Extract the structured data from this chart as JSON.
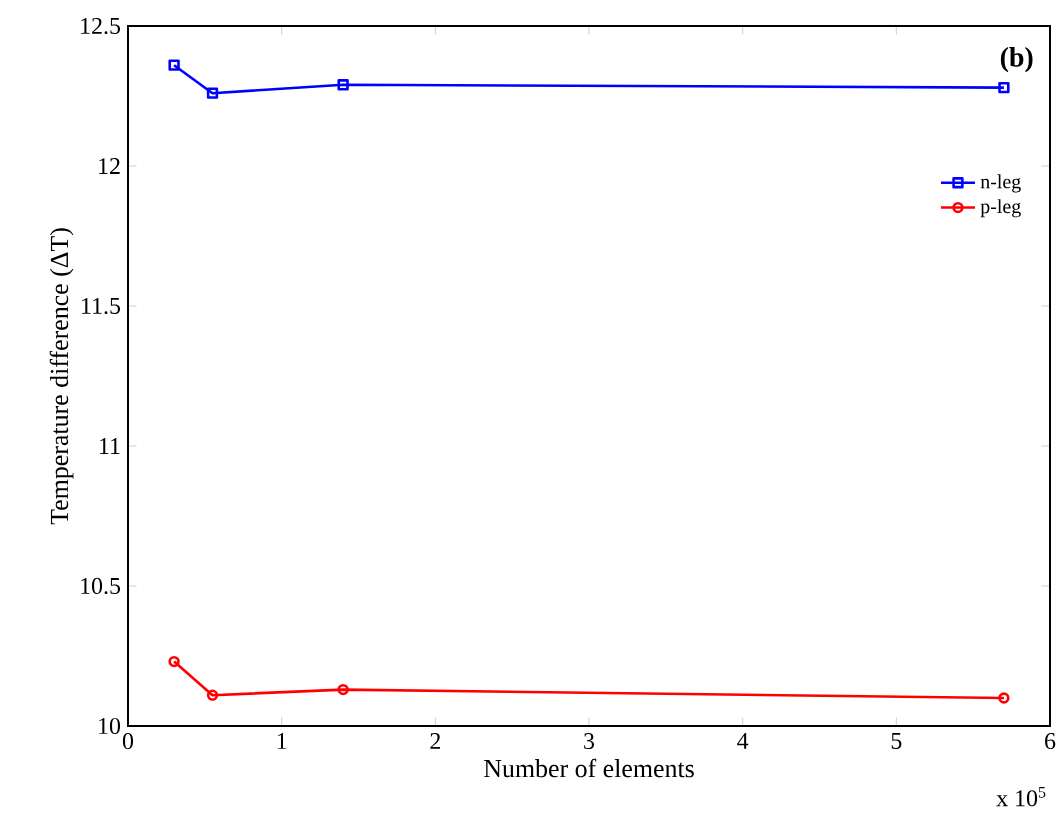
{
  "chart_data": {
    "type": "line",
    "xlabel": "Number of elements",
    "ylabel": "Temperature difference (ΔT)",
    "annotations": [
      "(b)",
      "x 10$^{5}$"
    ],
    "x": [
      0.3,
      0.55,
      1.4,
      5.7
    ],
    "series": [
      {
        "name": "n-leg",
        "color": "#0000ff",
        "marker": "square",
        "values": [
          12.36,
          12.26,
          12.29,
          12.28
        ]
      },
      {
        "name": "p-leg",
        "color": "#ff0000",
        "marker": "circle",
        "values": [
          10.23,
          10.11,
          10.13,
          10.1
        ]
      }
    ],
    "xlim": [
      0,
      6
    ],
    "xticks": [
      0,
      1,
      2,
      3,
      4,
      5,
      6
    ],
    "ylim": [
      10,
      12.5
    ],
    "yticks": [
      10,
      10.5,
      11,
      11.5,
      12,
      12.5
    ],
    "grid": false,
    "legend": "right",
    "line_style": "solid"
  }
}
